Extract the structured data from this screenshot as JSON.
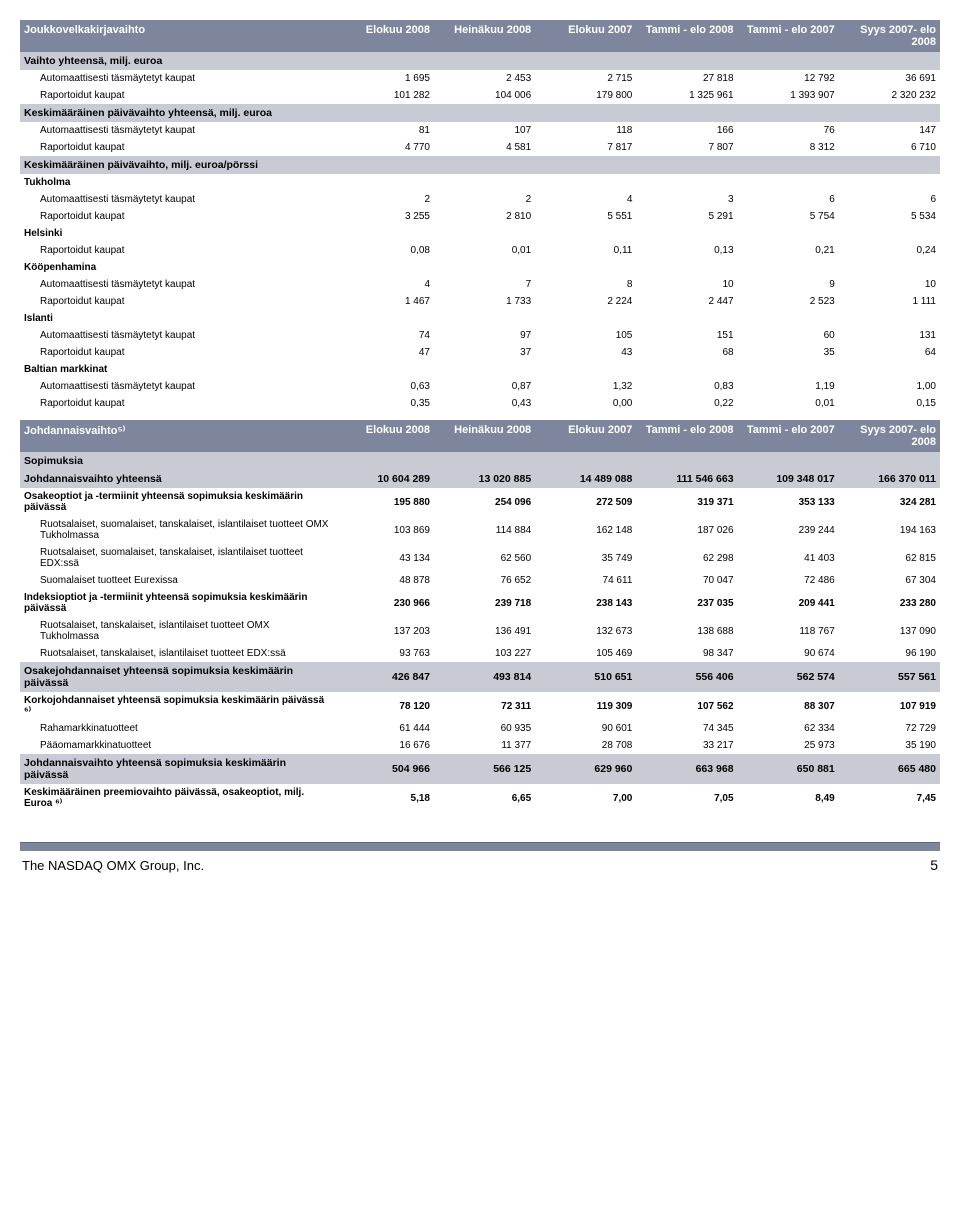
{
  "table1": {
    "headers": [
      "Joukkovelkakirjavaihto",
      "Elokuu 2008",
      "Heinäkuu 2008",
      "Elokuu 2007",
      "Tammi - elo 2008",
      "Tammi - elo 2007",
      "Syys 2007- elo 2008"
    ],
    "sections": [
      {
        "title": "Vaihto yhteensä, milj. euroa",
        "rows": [
          {
            "label": "Automaattisesti täsmäytetyt kaupat",
            "v": [
              "1 695",
              "2 453",
              "2 715",
              "27 818",
              "12 792",
              "36 691"
            ]
          },
          {
            "label": "Raportoidut kaupat",
            "v": [
              "101 282",
              "104 006",
              "179 800",
              "1 325 961",
              "1 393 907",
              "2 320 232"
            ]
          }
        ]
      },
      {
        "title": "Keskimääräinen päivävaihto yhteensä, milj. euroa",
        "rows": [
          {
            "label": "Automaattisesti täsmäytetyt kaupat",
            "v": [
              "81",
              "107",
              "118",
              "166",
              "76",
              "147"
            ]
          },
          {
            "label": "Raportoidut kaupat",
            "v": [
              "4 770",
              "4 581",
              "7 817",
              "7 807",
              "8 312",
              "6 710"
            ]
          }
        ]
      },
      {
        "title": "Keskimääräinen päivävaihto, milj. euroa/pörssi",
        "rows": []
      },
      {
        "title": "Tukholma",
        "plain": true,
        "rows": [
          {
            "label": "Automaattisesti täsmäytetyt kaupat",
            "v": [
              "2",
              "2",
              "4",
              "3",
              "6",
              "6"
            ]
          },
          {
            "label": "Raportoidut kaupat",
            "v": [
              "3 255",
              "2 810",
              "5 551",
              "5 291",
              "5 754",
              "5 534"
            ]
          }
        ]
      },
      {
        "title": "Helsinki",
        "plain": true,
        "rows": [
          {
            "label": "Raportoidut kaupat",
            "v": [
              "0,08",
              "0,01",
              "0,11",
              "0,13",
              "0,21",
              "0,24"
            ]
          }
        ]
      },
      {
        "title": "Kööpenhamina",
        "plain": true,
        "rows": [
          {
            "label": "Automaattisesti täsmäytetyt kaupat",
            "v": [
              "4",
              "7",
              "8",
              "10",
              "9",
              "10"
            ]
          },
          {
            "label": "Raportoidut kaupat",
            "v": [
              "1 467",
              "1 733",
              "2 224",
              "2 447",
              "2 523",
              "1 111"
            ]
          }
        ]
      },
      {
        "title": "Islanti",
        "plain": true,
        "rows": [
          {
            "label": "Automaattisesti täsmäytetyt kaupat",
            "v": [
              "74",
              "97",
              "105",
              "151",
              "60",
              "131"
            ]
          },
          {
            "label": "Raportoidut kaupat",
            "v": [
              "47",
              "37",
              "43",
              "68",
              "35",
              "64"
            ]
          }
        ]
      },
      {
        "title": "Baltian markkinat",
        "plain": true,
        "rows": [
          {
            "label": "Automaattisesti täsmäytetyt kaupat",
            "v": [
              "0,63",
              "0,87",
              "1,32",
              "0,83",
              "1,19",
              "1,00"
            ]
          },
          {
            "label": "Raportoidut kaupat",
            "v": [
              "0,35",
              "0,43",
              "0,00",
              "0,22",
              "0,01",
              "0,15"
            ]
          }
        ]
      }
    ]
  },
  "table2": {
    "headers": [
      "Johdannaisvaihto⁵⁾",
      "Elokuu 2008",
      "Heinäkuu 2008",
      "Elokuu 2007",
      "Tammi - elo 2008",
      "Tammi - elo 2007",
      "Syys 2007- elo 2008"
    ],
    "rows": [
      {
        "type": "section",
        "label": "Sopimuksia"
      },
      {
        "type": "section",
        "label": "Johdannaisvaihto yhteensä",
        "v": [
          "10 604 289",
          "13 020 885",
          "14 489 088",
          "111 546 663",
          "109 348 017",
          "166 370 011"
        ]
      },
      {
        "type": "bold",
        "label": "Osakeoptiot ja -termiinit yhteensä sopimuksia keskimäärin päivässä",
        "v": [
          "195 880",
          "254 096",
          "272 509",
          "319 371",
          "353 133",
          "324 281"
        ]
      },
      {
        "type": "indent",
        "label": "Ruotsalaiset, suomalaiset, tanskalaiset, islantilaiset tuotteet OMX Tukholmassa",
        "v": [
          "103 869",
          "114 884",
          "162 148",
          "187 026",
          "239 244",
          "194 163"
        ]
      },
      {
        "type": "indent",
        "label": "Ruotsalaiset, suomalaiset, tanskalaiset, islantilaiset tuotteet EDX:ssä",
        "v": [
          "43 134",
          "62 560",
          "35 749",
          "62 298",
          "41 403",
          "62 815"
        ]
      },
      {
        "type": "indent",
        "label": "Suomalaiset tuotteet Eurexissa",
        "v": [
          "48 878",
          "76 652",
          "74 611",
          "70 047",
          "72 486",
          "67 304"
        ]
      },
      {
        "type": "bold",
        "label": "Indeksioptiot ja -termiinit yhteensä sopimuksia keskimäärin päivässä",
        "v": [
          "230 966",
          "239 718",
          "238 143",
          "237 035",
          "209 441",
          "233 280"
        ]
      },
      {
        "type": "indent",
        "label": "Ruotsalaiset, tanskalaiset, islantilaiset tuotteet OMX Tukholmassa",
        "v": [
          "137 203",
          "136 491",
          "132 673",
          "138 688",
          "118 767",
          "137 090"
        ]
      },
      {
        "type": "indent",
        "label": "Ruotsalaiset, tanskalaiset, islantilaiset tuotteet EDX:ssä",
        "v": [
          "93 763",
          "103 227",
          "105 469",
          "98 347",
          "90 674",
          "96 190"
        ]
      },
      {
        "type": "section",
        "label": "Osakejohdannaiset yhteensä sopimuksia keskimäärin päivässä",
        "v": [
          "426 847",
          "493 814",
          "510 651",
          "556 406",
          "562 574",
          "557 561"
        ]
      },
      {
        "type": "bold",
        "label": "Korkojohdannaiset yhteensä sopimuksia keskimäärin päivässä ⁶⁾",
        "v": [
          "78 120",
          "72 311",
          "119 309",
          "107 562",
          "88 307",
          "107 919"
        ]
      },
      {
        "type": "indent",
        "label": "Rahamarkkinatuotteet",
        "v": [
          "61 444",
          "60 935",
          "90 601",
          "74 345",
          "62 334",
          "72 729"
        ]
      },
      {
        "type": "indent",
        "label": "Pääomamarkkinatuotteet",
        "v": [
          "16 676",
          "11 377",
          "28 708",
          "33 217",
          "25 973",
          "35 190"
        ]
      },
      {
        "type": "section",
        "label": "Johdannaisvaihto yhteensä sopimuksia keskimäärin päivässä",
        "v": [
          "504 966",
          "566 125",
          "629 960",
          "663 968",
          "650 881",
          "665 480"
        ]
      },
      {
        "type": "bold",
        "label": "Keskimääräinen preemiovaihto päivässä, osakeoptiot, milj. Euroa ⁶⁾",
        "v": [
          "5,18",
          "6,65",
          "7,00",
          "7,05",
          "8,49",
          "7,45"
        ]
      }
    ]
  },
  "footer": {
    "company": "The NASDAQ OMX Group, Inc.",
    "page": "5"
  },
  "style": {
    "header_bg": "#7d869c",
    "header_fg": "#ffffff",
    "section_bg": "#c8cbd4",
    "body_bg": "#ffffff",
    "text_color": "#000000",
    "font_size_body": 10,
    "font_size_header": 11
  }
}
